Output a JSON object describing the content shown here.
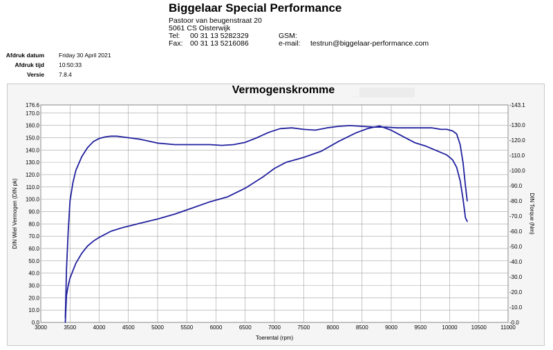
{
  "header": {
    "company": "Biggelaar Special Performance",
    "street": "Pastoor van beugenstraat  20",
    "city": "5061 CS Oisterwijk",
    "tel_label": "Tel:",
    "tel": "00 31 13 5282329",
    "fax_label": "Fax:",
    "fax": "00 31 13 5216086",
    "gsm_label": "GSM:",
    "email_label": "e-mail:",
    "email": "testrun@biggelaar-performance.com"
  },
  "meta": {
    "date_label": "Afdruk datum",
    "date": "Friday 30 April 2021",
    "time_label": "Afdruk tijd",
    "time": "10:50:33",
    "version_label": "Versie",
    "version": "7.8.4"
  },
  "colors": {
    "curve": "#1f1f9e",
    "grid": "#a0a0a0",
    "plot_bg": "#ffffff"
  },
  "chart_data": {
    "type": "line",
    "title": "Vermogenskromme",
    "xlabel": "Toerental (rpm)",
    "ylabel": "DIN Wiel Vermogen (DIN pk)",
    "y2label": "DIN Torque (Nm)",
    "xlim": [
      3000,
      11000
    ],
    "ylim": [
      0,
      176.6
    ],
    "y2lim": [
      0,
      143.1
    ],
    "grid": true,
    "x_ticks": [
      3000,
      3500,
      4000,
      4500,
      5000,
      5500,
      6000,
      6500,
      7000,
      7500,
      8000,
      8500,
      9000,
      9500,
      10000,
      10500,
      11000
    ],
    "y_ticks": [
      0,
      10,
      20,
      30,
      40,
      50,
      60,
      70,
      80,
      90,
      100,
      110,
      120,
      130,
      140,
      150,
      160,
      170,
      176.6
    ],
    "y2_ticks": [
      0,
      10,
      20,
      30,
      40,
      50,
      60,
      70,
      80,
      90,
      100,
      110,
      120,
      130,
      143.1
    ],
    "series": [
      {
        "axis": "right",
        "x": [
          3420,
          3440,
          3470,
          3500,
          3550,
          3600,
          3700,
          3800,
          3900,
          4000,
          4100,
          4200,
          4300,
          4500,
          4700,
          5000,
          5300,
          5600,
          5900,
          6100,
          6300,
          6500,
          6700,
          6900,
          7100,
          7300,
          7500,
          7700,
          7900,
          8100,
          8300,
          8500,
          8700,
          8900,
          9100,
          9300,
          9500,
          9700,
          9850,
          9950,
          10050,
          10120,
          10180,
          10230,
          10270,
          10300
        ],
        "values": [
          3,
          35,
          60,
          80,
          92,
          100,
          109,
          115,
          119,
          121,
          122,
          122.5,
          122.5,
          121.5,
          120.5,
          118,
          117,
          117,
          117,
          116.5,
          117,
          118.5,
          121.5,
          125,
          127.5,
          128,
          127,
          126.5,
          128,
          129,
          129.5,
          129,
          128.5,
          128.5,
          128,
          128,
          128,
          128,
          127,
          127,
          126,
          124,
          117,
          105,
          90,
          80
        ]
      },
      {
        "axis": "left",
        "x": [
          3420,
          3440,
          3470,
          3500,
          3550,
          3600,
          3700,
          3800,
          3900,
          4000,
          4200,
          4400,
          4700,
          5000,
          5300,
          5600,
          5900,
          6200,
          6500,
          6800,
          7000,
          7200,
          7500,
          7800,
          8100,
          8400,
          8600,
          8800,
          9000,
          9200,
          9400,
          9600,
          9800,
          9950,
          10050,
          10120,
          10180,
          10230,
          10270,
          10300
        ],
        "values": [
          0,
          22,
          30,
          36,
          42,
          48,
          56,
          62,
          66,
          69,
          74,
          77,
          80.5,
          84,
          88,
          93,
          98,
          102,
          109,
          118,
          125,
          130,
          134,
          139,
          147,
          154,
          157.5,
          159.5,
          156,
          151,
          146,
          143,
          139,
          136,
          132,
          126,
          115,
          100,
          85,
          82
        ]
      }
    ]
  }
}
